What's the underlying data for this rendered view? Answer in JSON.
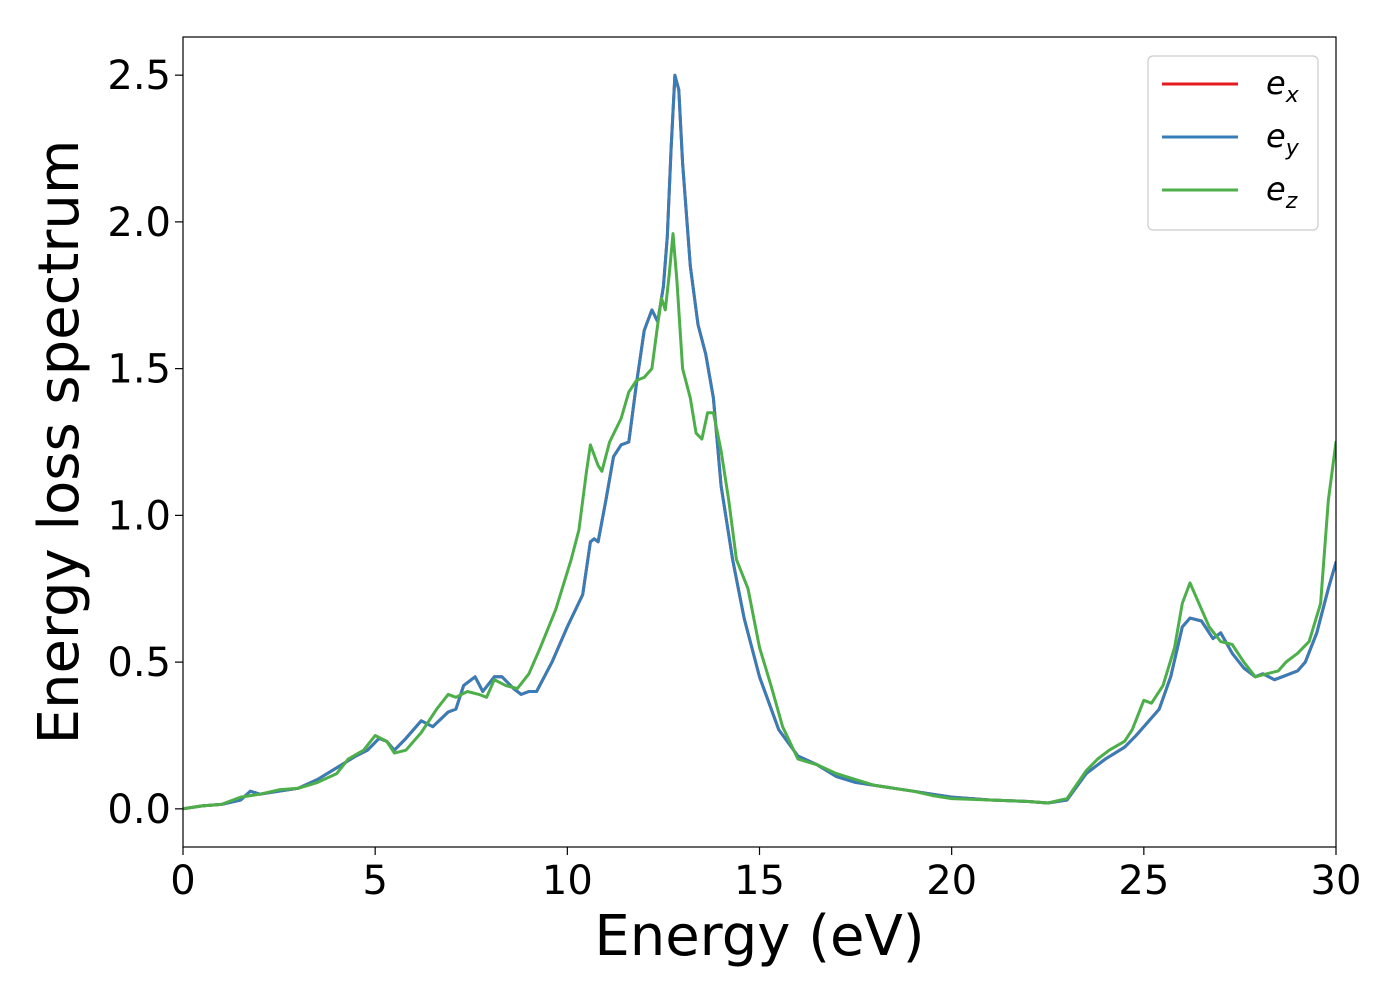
{
  "chart_data": {
    "type": "line",
    "title": "",
    "xlabel": "Energy (eV)",
    "ylabel": "Energy loss spectrum",
    "xlim": [
      0,
      30
    ],
    "ylim": [
      -0.13,
      2.63
    ],
    "x_ticks": [
      0,
      5,
      10,
      15,
      20,
      25,
      30
    ],
    "x_tick_labels": [
      "0",
      "5",
      "10",
      "15",
      "20",
      "25",
      "30"
    ],
    "y_ticks": [
      0.0,
      0.5,
      1.0,
      1.5,
      2.0,
      2.5
    ],
    "y_tick_labels": [
      "0.0",
      "0.5",
      "1.0",
      "1.5",
      "2.0",
      "2.5"
    ],
    "grid": false,
    "legend_position": "top-right",
    "series": [
      {
        "name": "e",
        "subscript": "x",
        "color": "#e41a1c",
        "points": [
          [
            0,
            0.0
          ],
          [
            0.5,
            0.01
          ],
          [
            1,
            0.015
          ],
          [
            1.5,
            0.03
          ],
          [
            1.75,
            0.06
          ],
          [
            2,
            0.05
          ],
          [
            2.5,
            0.06
          ],
          [
            3,
            0.07
          ],
          [
            3.5,
            0.1
          ],
          [
            4,
            0.14
          ],
          [
            4.5,
            0.18
          ],
          [
            4.8,
            0.2
          ],
          [
            5.1,
            0.24
          ],
          [
            5.3,
            0.23
          ],
          [
            5.5,
            0.2
          ],
          [
            5.8,
            0.24
          ],
          [
            6.2,
            0.3
          ],
          [
            6.5,
            0.28
          ],
          [
            6.9,
            0.33
          ],
          [
            7.1,
            0.34
          ],
          [
            7.3,
            0.42
          ],
          [
            7.6,
            0.45
          ],
          [
            7.8,
            0.4
          ],
          [
            8.1,
            0.45
          ],
          [
            8.3,
            0.45
          ],
          [
            8.6,
            0.41
          ],
          [
            8.8,
            0.39
          ],
          [
            9.0,
            0.4
          ],
          [
            9.2,
            0.4
          ],
          [
            9.6,
            0.5
          ],
          [
            10.0,
            0.62
          ],
          [
            10.4,
            0.73
          ],
          [
            10.6,
            0.91
          ],
          [
            10.7,
            0.92
          ],
          [
            10.8,
            0.91
          ],
          [
            11.0,
            1.05
          ],
          [
            11.2,
            1.2
          ],
          [
            11.4,
            1.24
          ],
          [
            11.6,
            1.25
          ],
          [
            11.8,
            1.45
          ],
          [
            12.0,
            1.63
          ],
          [
            12.2,
            1.7
          ],
          [
            12.35,
            1.66
          ],
          [
            12.5,
            1.78
          ],
          [
            12.6,
            1.95
          ],
          [
            12.7,
            2.25
          ],
          [
            12.8,
            2.5
          ],
          [
            12.9,
            2.45
          ],
          [
            13.0,
            2.2
          ],
          [
            13.2,
            1.85
          ],
          [
            13.4,
            1.65
          ],
          [
            13.6,
            1.55
          ],
          [
            13.8,
            1.4
          ],
          [
            14.0,
            1.1
          ],
          [
            14.3,
            0.85
          ],
          [
            14.6,
            0.65
          ],
          [
            15.0,
            0.45
          ],
          [
            15.5,
            0.27
          ],
          [
            16.0,
            0.18
          ],
          [
            16.5,
            0.15
          ],
          [
            17.0,
            0.11
          ],
          [
            17.5,
            0.09
          ],
          [
            18.0,
            0.08
          ],
          [
            18.5,
            0.07
          ],
          [
            19.0,
            0.06
          ],
          [
            19.5,
            0.05
          ],
          [
            20.0,
            0.04
          ],
          [
            21.0,
            0.03
          ],
          [
            22.0,
            0.025
          ],
          [
            22.5,
            0.02
          ],
          [
            23.0,
            0.03
          ],
          [
            23.5,
            0.12
          ],
          [
            24.0,
            0.17
          ],
          [
            24.5,
            0.21
          ],
          [
            24.8,
            0.25
          ],
          [
            25.0,
            0.28
          ],
          [
            25.4,
            0.34
          ],
          [
            25.7,
            0.45
          ],
          [
            26.0,
            0.62
          ],
          [
            26.2,
            0.65
          ],
          [
            26.5,
            0.64
          ],
          [
            26.8,
            0.58
          ],
          [
            27.0,
            0.6
          ],
          [
            27.3,
            0.53
          ],
          [
            27.6,
            0.48
          ],
          [
            27.9,
            0.45
          ],
          [
            28.1,
            0.46
          ],
          [
            28.4,
            0.44
          ],
          [
            28.6,
            0.45
          ],
          [
            29.0,
            0.47
          ],
          [
            29.2,
            0.5
          ],
          [
            29.5,
            0.6
          ],
          [
            29.8,
            0.75
          ],
          [
            30.0,
            0.84
          ]
        ]
      },
      {
        "name": "e",
        "subscript": "y",
        "color": "#377eb8",
        "points": [
          [
            0,
            0.0
          ],
          [
            0.5,
            0.01
          ],
          [
            1,
            0.015
          ],
          [
            1.5,
            0.03
          ],
          [
            1.75,
            0.06
          ],
          [
            2,
            0.05
          ],
          [
            2.5,
            0.06
          ],
          [
            3,
            0.07
          ],
          [
            3.5,
            0.1
          ],
          [
            4,
            0.14
          ],
          [
            4.5,
            0.18
          ],
          [
            4.8,
            0.2
          ],
          [
            5.1,
            0.24
          ],
          [
            5.3,
            0.23
          ],
          [
            5.5,
            0.2
          ],
          [
            5.8,
            0.24
          ],
          [
            6.2,
            0.3
          ],
          [
            6.5,
            0.28
          ],
          [
            6.9,
            0.33
          ],
          [
            7.1,
            0.34
          ],
          [
            7.3,
            0.42
          ],
          [
            7.6,
            0.45
          ],
          [
            7.8,
            0.4
          ],
          [
            8.1,
            0.45
          ],
          [
            8.3,
            0.45
          ],
          [
            8.6,
            0.41
          ],
          [
            8.8,
            0.39
          ],
          [
            9.0,
            0.4
          ],
          [
            9.2,
            0.4
          ],
          [
            9.6,
            0.5
          ],
          [
            10.0,
            0.62
          ],
          [
            10.4,
            0.73
          ],
          [
            10.6,
            0.91
          ],
          [
            10.7,
            0.92
          ],
          [
            10.8,
            0.91
          ],
          [
            11.0,
            1.05
          ],
          [
            11.2,
            1.2
          ],
          [
            11.4,
            1.24
          ],
          [
            11.6,
            1.25
          ],
          [
            11.8,
            1.45
          ],
          [
            12.0,
            1.63
          ],
          [
            12.2,
            1.7
          ],
          [
            12.35,
            1.66
          ],
          [
            12.5,
            1.78
          ],
          [
            12.6,
            1.95
          ],
          [
            12.7,
            2.25
          ],
          [
            12.8,
            2.5
          ],
          [
            12.9,
            2.45
          ],
          [
            13.0,
            2.2
          ],
          [
            13.2,
            1.85
          ],
          [
            13.4,
            1.65
          ],
          [
            13.6,
            1.55
          ],
          [
            13.8,
            1.4
          ],
          [
            14.0,
            1.1
          ],
          [
            14.3,
            0.85
          ],
          [
            14.6,
            0.65
          ],
          [
            15.0,
            0.45
          ],
          [
            15.5,
            0.27
          ],
          [
            16.0,
            0.18
          ],
          [
            16.5,
            0.15
          ],
          [
            17.0,
            0.11
          ],
          [
            17.5,
            0.09
          ],
          [
            18.0,
            0.08
          ],
          [
            18.5,
            0.07
          ],
          [
            19.0,
            0.06
          ],
          [
            19.5,
            0.05
          ],
          [
            20.0,
            0.04
          ],
          [
            21.0,
            0.03
          ],
          [
            22.0,
            0.025
          ],
          [
            22.5,
            0.02
          ],
          [
            23.0,
            0.03
          ],
          [
            23.5,
            0.12
          ],
          [
            24.0,
            0.17
          ],
          [
            24.5,
            0.21
          ],
          [
            24.8,
            0.25
          ],
          [
            25.0,
            0.28
          ],
          [
            25.4,
            0.34
          ],
          [
            25.7,
            0.45
          ],
          [
            26.0,
            0.62
          ],
          [
            26.2,
            0.65
          ],
          [
            26.5,
            0.64
          ],
          [
            26.8,
            0.58
          ],
          [
            27.0,
            0.6
          ],
          [
            27.3,
            0.53
          ],
          [
            27.6,
            0.48
          ],
          [
            27.9,
            0.45
          ],
          [
            28.1,
            0.46
          ],
          [
            28.4,
            0.44
          ],
          [
            28.6,
            0.45
          ],
          [
            29.0,
            0.47
          ],
          [
            29.2,
            0.5
          ],
          [
            29.5,
            0.6
          ],
          [
            29.8,
            0.75
          ],
          [
            30.0,
            0.84
          ]
        ]
      },
      {
        "name": "e",
        "subscript": "z",
        "color": "#4daf4a",
        "points": [
          [
            0,
            0.0
          ],
          [
            0.5,
            0.01
          ],
          [
            1,
            0.015
          ],
          [
            1.5,
            0.04
          ],
          [
            2,
            0.05
          ],
          [
            2.5,
            0.065
          ],
          [
            3,
            0.07
          ],
          [
            3.5,
            0.09
          ],
          [
            4,
            0.12
          ],
          [
            4.3,
            0.17
          ],
          [
            4.7,
            0.2
          ],
          [
            5.0,
            0.25
          ],
          [
            5.3,
            0.23
          ],
          [
            5.5,
            0.19
          ],
          [
            5.8,
            0.2
          ],
          [
            6.2,
            0.26
          ],
          [
            6.6,
            0.34
          ],
          [
            6.9,
            0.39
          ],
          [
            7.1,
            0.38
          ],
          [
            7.4,
            0.4
          ],
          [
            7.7,
            0.39
          ],
          [
            7.9,
            0.38
          ],
          [
            8.1,
            0.44
          ],
          [
            8.4,
            0.42
          ],
          [
            8.7,
            0.41
          ],
          [
            9.0,
            0.46
          ],
          [
            9.3,
            0.55
          ],
          [
            9.7,
            0.68
          ],
          [
            10.1,
            0.85
          ],
          [
            10.3,
            0.95
          ],
          [
            10.5,
            1.15
          ],
          [
            10.6,
            1.24
          ],
          [
            10.8,
            1.17
          ],
          [
            10.9,
            1.15
          ],
          [
            11.1,
            1.25
          ],
          [
            11.4,
            1.33
          ],
          [
            11.6,
            1.42
          ],
          [
            11.8,
            1.46
          ],
          [
            12.0,
            1.47
          ],
          [
            12.2,
            1.5
          ],
          [
            12.35,
            1.65
          ],
          [
            12.45,
            1.74
          ],
          [
            12.55,
            1.7
          ],
          [
            12.65,
            1.82
          ],
          [
            12.75,
            1.96
          ],
          [
            12.85,
            1.8
          ],
          [
            13.0,
            1.5
          ],
          [
            13.2,
            1.4
          ],
          [
            13.35,
            1.28
          ],
          [
            13.5,
            1.26
          ],
          [
            13.65,
            1.35
          ],
          [
            13.8,
            1.35
          ],
          [
            14.0,
            1.22
          ],
          [
            14.2,
            1.05
          ],
          [
            14.4,
            0.85
          ],
          [
            14.7,
            0.75
          ],
          [
            15.0,
            0.55
          ],
          [
            15.3,
            0.42
          ],
          [
            15.6,
            0.28
          ],
          [
            16.0,
            0.17
          ],
          [
            16.5,
            0.15
          ],
          [
            17.0,
            0.12
          ],
          [
            17.5,
            0.1
          ],
          [
            18.0,
            0.08
          ],
          [
            18.5,
            0.07
          ],
          [
            19.0,
            0.06
          ],
          [
            19.5,
            0.045
          ],
          [
            20.0,
            0.035
          ],
          [
            21.0,
            0.03
          ],
          [
            22.0,
            0.025
          ],
          [
            22.5,
            0.02
          ],
          [
            23.0,
            0.035
          ],
          [
            23.5,
            0.13
          ],
          [
            23.8,
            0.17
          ],
          [
            24.1,
            0.2
          ],
          [
            24.5,
            0.23
          ],
          [
            24.7,
            0.27
          ],
          [
            25.0,
            0.37
          ],
          [
            25.2,
            0.36
          ],
          [
            25.5,
            0.42
          ],
          [
            25.8,
            0.55
          ],
          [
            26.0,
            0.7
          ],
          [
            26.2,
            0.77
          ],
          [
            26.5,
            0.68
          ],
          [
            26.7,
            0.62
          ],
          [
            27.0,
            0.57
          ],
          [
            27.3,
            0.56
          ],
          [
            27.6,
            0.5
          ],
          [
            27.9,
            0.45
          ],
          [
            28.2,
            0.46
          ],
          [
            28.5,
            0.47
          ],
          [
            28.7,
            0.5
          ],
          [
            29.0,
            0.53
          ],
          [
            29.3,
            0.57
          ],
          [
            29.6,
            0.7
          ],
          [
            29.8,
            1.05
          ],
          [
            30.0,
            1.25
          ]
        ]
      }
    ]
  }
}
